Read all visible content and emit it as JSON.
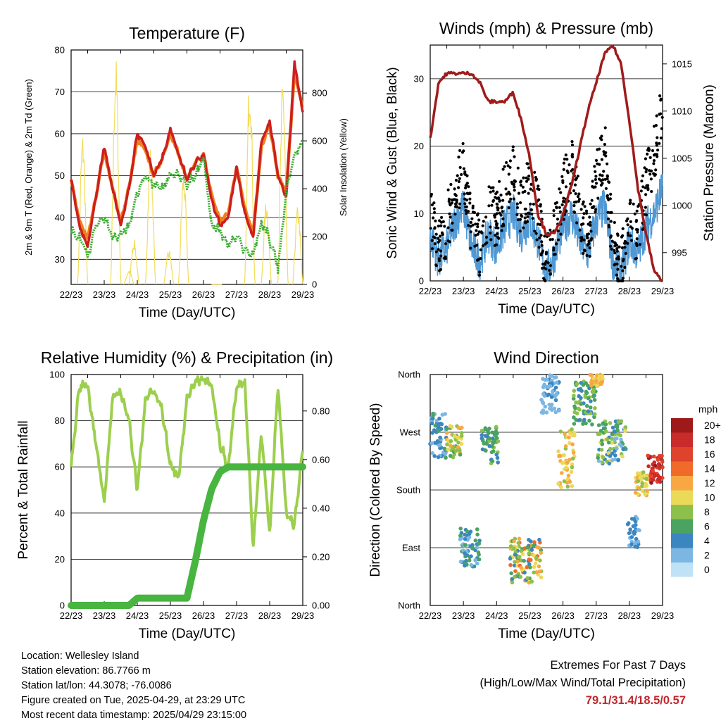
{
  "days": [
    "22/23",
    "23/23",
    "24/23",
    "25/23",
    "26/23",
    "27/23",
    "28/23",
    "29/23"
  ],
  "colors": {
    "t2m": "#cc1f1f",
    "t9m": "#f0801e",
    "td": "#3fae35",
    "solar": "#f2dc5a",
    "wind": "#4f98d3",
    "gust": "#000000",
    "pressure": "#a01b1b",
    "rh": "#9ccf4e",
    "precip": "#48b540"
  },
  "panels": {
    "temperature": {
      "title": "Temperature (F)",
      "xlabel": "Time (Day/UTC)",
      "ylabel_left": "2m & 9m T (Red, Orange) & 2m Td (Green)",
      "ylabel_right": "Solar Insolation (Yellow)",
      "left_ticks": [
        "30",
        "40",
        "50",
        "60",
        "70",
        "80"
      ],
      "right_ticks": [
        "0",
        "200",
        "400",
        "600",
        "800"
      ]
    },
    "winds": {
      "title": "Winds (mph) & Pressure (mb)",
      "xlabel": "Time (Day/UTC)",
      "ylabel_left": "Sonic Wind & Gust (Blue, Black)",
      "ylabel_right": "Station Pressure (Maroon)",
      "left_ticks": [
        "0",
        "10",
        "20",
        "30"
      ],
      "right_ticks": [
        "995",
        "1000",
        "1005",
        "1010",
        "1015"
      ]
    },
    "humidity": {
      "title": "Relative Humidity (%) & Precipitation (in)",
      "xlabel": "Time (Day/UTC)",
      "ylabel_left": "Percent & Total Rainfall",
      "left_ticks": [
        "0",
        "20",
        "40",
        "60",
        "80",
        "100"
      ],
      "right_ticks": [
        "0.00",
        "0.20",
        "0.40",
        "0.60",
        "0.80"
      ]
    },
    "direction": {
      "title": "Wind Direction",
      "xlabel": "Time (Day/UTC)",
      "ylabel_left": "Direction (Colored By Speed)",
      "left_ticks": [
        "North",
        "East",
        "South",
        "West",
        "North"
      ],
      "legend_title": "mph",
      "legend_labels": [
        "20+",
        "18",
        "16",
        "14",
        "12",
        "10",
        "8",
        "6",
        "4",
        "2",
        "0"
      ],
      "legend_colors": [
        "#9e1a1a",
        "#c92a2a",
        "#e0432c",
        "#f06a2a",
        "#f8a843",
        "#ebd95a",
        "#8cc04b",
        "#4aa361",
        "#3c86c0",
        "#7cb7e3",
        "#bfe2f7"
      ]
    }
  },
  "chart_data": [
    {
      "type": "line",
      "title": "Temperature (F)",
      "xlabel": "Time (Day/UTC)",
      "ylabel": "2m & 9m T (Red, Orange) & 2m Td (Green)",
      "y2label": "Solar Insolation (Yellow)",
      "xlim": [
        0,
        7
      ],
      "ylim": [
        24,
        80
      ],
      "y2lim": [
        0,
        980
      ],
      "x": [
        0,
        0.25,
        0.5,
        0.75,
        1,
        1.25,
        1.5,
        1.75,
        2,
        2.25,
        2.5,
        2.75,
        3,
        3.25,
        3.5,
        3.75,
        4,
        4.25,
        4.5,
        4.75,
        5,
        5.25,
        5.5,
        5.75,
        6,
        6.25,
        6.5,
        6.75,
        7
      ],
      "series": [
        {
          "name": "2m T",
          "values": [
            49,
            38,
            33,
            45,
            57,
            47,
            38,
            47,
            60,
            57,
            50,
            54,
            61,
            55,
            49,
            53,
            55,
            44,
            38,
            40,
            52,
            41,
            35,
            58,
            63,
            50,
            45,
            77,
            65
          ]
        },
        {
          "name": "9m T",
          "values": [
            49,
            39,
            35,
            45,
            56,
            47,
            39,
            47,
            59,
            56,
            50,
            54,
            60,
            55,
            49,
            53,
            55,
            45,
            39,
            41,
            52,
            42,
            36,
            57,
            62,
            50,
            46,
            75,
            66
          ]
        },
        {
          "name": "2m Td",
          "values": [
            37,
            35,
            31,
            38,
            40,
            35,
            36,
            38,
            46,
            50,
            48,
            47,
            50,
            50,
            48,
            50,
            54,
            38,
            37,
            33,
            36,
            32,
            31,
            39,
            35,
            28,
            46,
            55,
            58
          ]
        },
        {
          "name": "Solar",
          "values": [
            0,
            0,
            0,
            0,
            0,
            0,
            150,
            0,
            0,
            0,
            0,
            0,
            0,
            0,
            150,
            0,
            0,
            0,
            0,
            0,
            0,
            0,
            0,
            0,
            0,
            0,
            0,
            0,
            0
          ]
        }
      ],
      "solar_peaks": [
        [
          0.35,
          640
        ],
        [
          1.35,
          960
        ],
        [
          1.75,
          60
        ],
        [
          1.9,
          190
        ],
        [
          2.4,
          580
        ],
        [
          2.95,
          150
        ],
        [
          3.4,
          480
        ],
        [
          4.4,
          0
        ],
        [
          5.4,
          920
        ],
        [
          5.9,
          360
        ],
        [
          6.4,
          870
        ],
        [
          6.85,
          330
        ]
      ]
    },
    {
      "type": "scatter",
      "title": "Winds (mph) & Pressure (mb)",
      "xlabel": "Time (Day/UTC)",
      "ylabel": "Sonic Wind & Gust (Blue, Black)",
      "y2label": "Station Pressure (Maroon)",
      "xlim": [
        0,
        7
      ],
      "ylim": [
        0,
        35
      ],
      "y2lim": [
        992,
        1017
      ],
      "x": [
        0,
        0.25,
        0.5,
        0.75,
        1,
        1.25,
        1.5,
        1.75,
        2,
        2.25,
        2.5,
        2.75,
        3,
        3.25,
        3.5,
        3.75,
        4,
        4.25,
        4.5,
        4.75,
        5,
        5.25,
        5.5,
        5.75,
        6,
        6.25,
        6.5,
        6.75,
        7
      ],
      "series": [
        {
          "name": "Wind",
          "values": [
            7,
            3,
            5,
            9,
            11,
            5,
            3,
            7,
            5,
            8,
            10,
            7,
            9,
            6,
            1,
            4,
            8,
            10,
            6,
            4,
            9,
            11,
            3,
            1,
            6,
            4,
            8,
            10,
            14
          ]
        },
        {
          "name": "Gust",
          "values": [
            10,
            5,
            8,
            14,
            16,
            8,
            5,
            11,
            9,
            13,
            16,
            11,
            14,
            10,
            2,
            7,
            13,
            17,
            10,
            6,
            15,
            20,
            5,
            2,
            10,
            7,
            14,
            19,
            26
          ]
        },
        {
          "name": "Pressure",
          "values": [
            1007,
            1013,
            1014,
            1014,
            1014,
            1014,
            1013,
            1011,
            1011,
            1011,
            1012,
            1009,
            1005,
            999,
            997,
            997,
            999,
            1002,
            1006,
            1010,
            1013,
            1016,
            1017,
            1015,
            1009,
            1002,
            997,
            993,
            992
          ]
        }
      ]
    },
    {
      "type": "line",
      "title": "Relative Humidity (%) & Precipitation (in)",
      "xlabel": "Time (Day/UTC)",
      "ylabel": "Percent & Total Rainfall",
      "xlim": [
        0,
        7
      ],
      "ylim": [
        0,
        100
      ],
      "y2lim": [
        0,
        0.95
      ],
      "x": [
        0,
        0.25,
        0.5,
        0.75,
        1,
        1.25,
        1.5,
        1.75,
        2,
        2.25,
        2.5,
        2.75,
        3,
        3.25,
        3.5,
        3.75,
        4,
        4.25,
        4.5,
        4.75,
        5,
        5.25,
        5.5,
        5.75,
        6,
        6.25,
        6.5,
        6.75,
        7
      ],
      "series": [
        {
          "name": "RH",
          "values": [
            60,
            95,
            95,
            70,
            45,
            90,
            92,
            80,
            50,
            90,
            93,
            85,
            60,
            55,
            90,
            97,
            98,
            95,
            70,
            60,
            95,
            97,
            25,
            75,
            30,
            96,
            40,
            35,
            68
          ]
        },
        {
          "name": "Precip",
          "values": [
            0,
            0,
            0,
            0,
            0,
            0,
            0,
            0,
            0.03,
            0.03,
            0.03,
            0.03,
            0.03,
            0.03,
            0.03,
            0.18,
            0.35,
            0.48,
            0.55,
            0.57,
            0.57,
            0.57,
            0.57,
            0.57,
            0.57,
            0.57,
            0.57,
            0.57,
            0.57
          ]
        }
      ]
    },
    {
      "type": "scatter",
      "title": "Wind Direction",
      "xlabel": "Time (Day/UTC)",
      "ylabel": "Direction (Colored By Speed)",
      "xlim": [
        0,
        7
      ],
      "ylim": [
        0,
        360
      ],
      "legend": "mph",
      "clusters": [
        {
          "x": [
            0,
            0.5
          ],
          "dir": [
            230,
            300
          ],
          "speed": [
            2,
            6
          ]
        },
        {
          "x": [
            0.5,
            0.95
          ],
          "dir": [
            230,
            280
          ],
          "speed": [
            6,
            13
          ]
        },
        {
          "x": [
            0.9,
            1.5
          ],
          "dir": [
            60,
            120
          ],
          "speed": [
            2,
            7
          ]
        },
        {
          "x": [
            1.55,
            2.05
          ],
          "dir": [
            220,
            280
          ],
          "speed": [
            3,
            8
          ]
        },
        {
          "x": [
            2.4,
            3.35
          ],
          "dir": [
            35,
            105
          ],
          "speed": [
            3,
            14
          ]
        },
        {
          "x": [
            3.35,
            3.9
          ],
          "dir": [
            300,
            360
          ],
          "speed": [
            1,
            4
          ]
        },
        {
          "x": [
            3.85,
            4.35
          ],
          "dir": [
            180,
            280
          ],
          "speed": [
            8,
            13
          ]
        },
        {
          "x": [
            4.3,
            5.0
          ],
          "dir": [
            280,
            350
          ],
          "speed": [
            4,
            9
          ]
        },
        {
          "x": [
            4.8,
            5.2
          ],
          "dir": [
            340,
            360
          ],
          "speed": [
            9,
            13
          ]
        },
        {
          "x": [
            5.05,
            5.9
          ],
          "dir": [
            220,
            290
          ],
          "speed": [
            2,
            11
          ]
        },
        {
          "x": [
            5.95,
            6.3
          ],
          "dir": [
            90,
            140
          ],
          "speed": [
            2,
            4
          ]
        },
        {
          "x": [
            6.15,
            6.6
          ],
          "dir": [
            170,
            210
          ],
          "speed": [
            8,
            13
          ]
        },
        {
          "x": [
            6.55,
            7.0
          ],
          "dir": [
            190,
            235
          ],
          "speed": [
            15,
            20
          ]
        }
      ]
    }
  ],
  "info": {
    "location": "Location: Wellesley Island",
    "elevation": "Station elevation: 86.7766 m",
    "latlon": "Station lat/lon: 44.3078; -76.0086",
    "created": "Figure created on Tue, 2025-04-29, at 23:29 UTC",
    "recent": "Most recent data timestamp: 2025/04/29 23:15:00"
  },
  "extremes": {
    "heading": "Extremes For Past 7 Days",
    "subheading": "(High/Low/Max Wind/Total Precipitation)",
    "values": "79.1/31.4/18.5/0.57"
  }
}
